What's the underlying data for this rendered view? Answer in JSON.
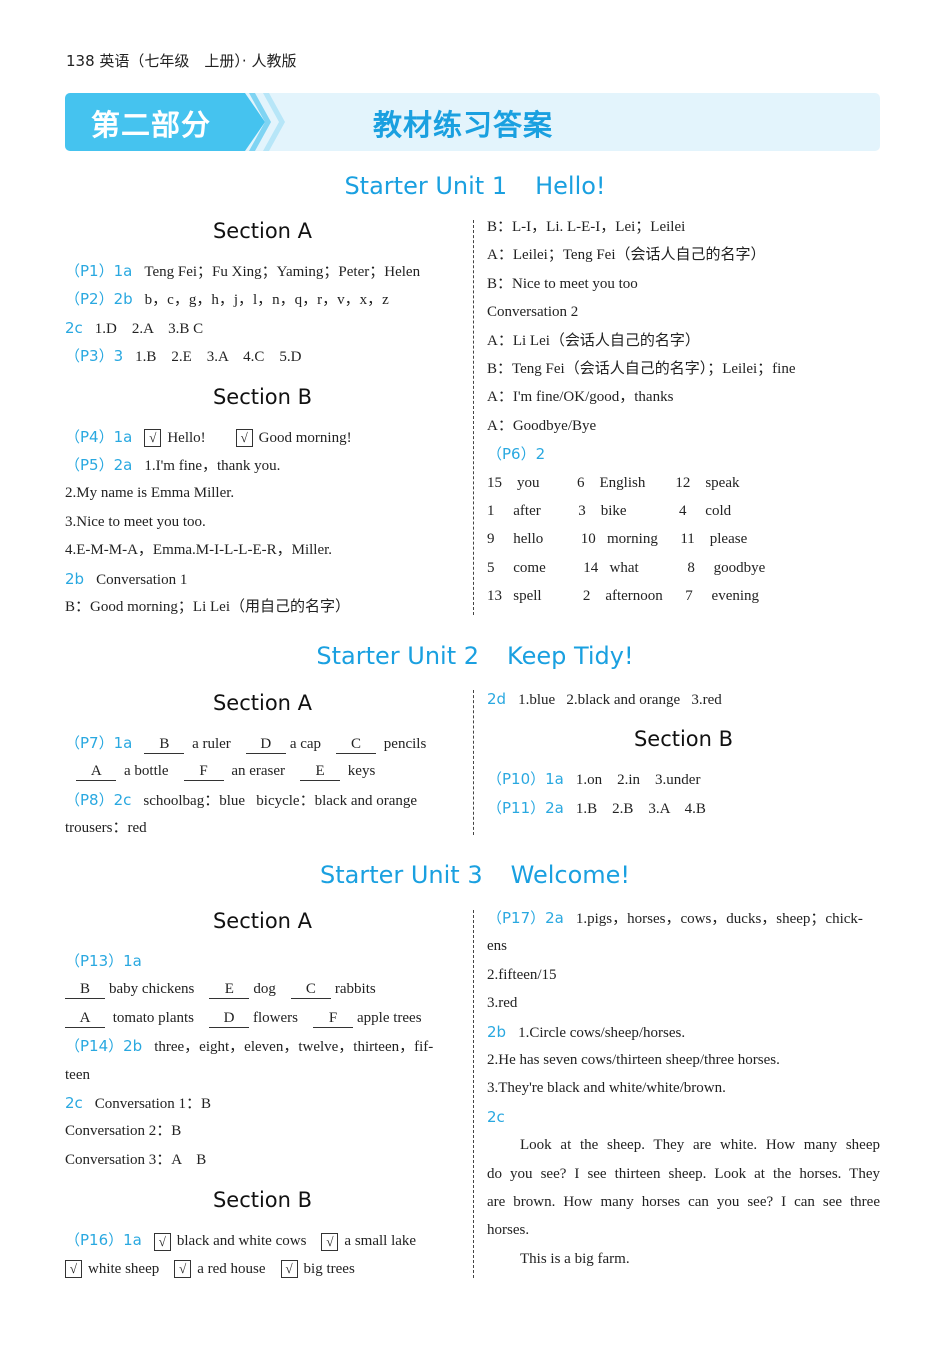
{
  "header": {
    "page_number": "138",
    "book": "英语（七年级　上册）· 人教版"
  },
  "banner": {
    "part": "第二部分",
    "title": "教材练习答案",
    "colors": {
      "tab": "#45c3ef",
      "bg": "#e3f4fc",
      "title": "#1aa0e0"
    }
  },
  "units": [
    {
      "number": "Starter Unit 1",
      "name": "Hello!",
      "left": [
        {
          "heading": "Section A"
        },
        {
          "label": "（P1）1a",
          "parts": [
            "Teng Fei；Fu Xing；Yaming；Peter；Helen"
          ]
        },
        {
          "label": "（P2）2b",
          "parts": [
            "b，c，g，h，j，l，n，q，r，v，x，z"
          ]
        },
        {
          "label": "  2c",
          "parts": [
            "1.D    2.A    3.B C"
          ]
        },
        {
          "label": "（P3）3",
          "parts": [
            "1.B    2.E    3.A    4.C    5.D"
          ]
        },
        {
          "heading": "Section B"
        },
        {
          "label": "（P4）1a",
          "parts": [
            {
              "check": "√"
            },
            "Hello!        ",
            {
              "check": "√"
            },
            "Good morning!"
          ]
        },
        {
          "label": "（P5）2a",
          "parts": [
            "1.I'm fine，thank you."
          ]
        },
        {
          "parts": [
            "2.My name is Emma Miller."
          ]
        },
        {
          "parts": [
            "3.Nice to meet you too."
          ]
        },
        {
          "parts": [
            "4.E-M-M-A，Emma.M-I-L-L-E-R，Miller."
          ]
        },
        {
          "label": "2b",
          "parts": [
            "Conversation 1"
          ]
        },
        {
          "parts": [
            "B：Good morning；Li Lei（用自己的名字）"
          ]
        }
      ],
      "right": [
        {
          "parts": [
            "B：L-I，Li. L-E-I，Lei；Leilei"
          ]
        },
        {
          "parts": [
            "A：Leilei；Teng Fei（会话人自己的名字）"
          ]
        },
        {
          "parts": [
            "B：Nice to meet you too"
          ]
        },
        {
          "parts": [
            "Conversation 2"
          ]
        },
        {
          "parts": [
            "A：Li Lei（会话人自己的名字）"
          ]
        },
        {
          "parts": [
            "B：Teng Fei（会话人自己的名字）；Leilei；fine"
          ]
        },
        {
          "parts": [
            "A：I'm fine/OK/good，thanks"
          ]
        },
        {
          "parts": [
            "A：Goodbye/Bye"
          ]
        },
        {
          "label": "（P6）2",
          "parts": []
        },
        {
          "parts": [
            "15    you          6    English        12    speak"
          ]
        },
        {
          "parts": [
            "1     after          3    bike              4     cold"
          ]
        },
        {
          "parts": [
            "9     hello          10   morning      11    please"
          ]
        },
        {
          "parts": [
            "5     come          14   what             8     goodbye"
          ]
        },
        {
          "parts": [
            "13   spell           2    afternoon      7     evening"
          ]
        }
      ]
    },
    {
      "number": "Starter Unit 2",
      "name": "Keep Tidy!",
      "left": [
        {
          "heading": "Section A"
        },
        {
          "label": "（P7）1a",
          "parts": [
            {
              "blank": "B"
            },
            " a ruler    ",
            {
              "blank": "D"
            },
            "a cap    ",
            {
              "blank": "C"
            },
            " pencils"
          ]
        },
        {
          "parts": [
            "   ",
            {
              "blank": "A"
            },
            " a bottle    ",
            {
              "blank": "F"
            },
            " an eraser    ",
            {
              "blank": "E"
            },
            " keys"
          ]
        },
        {
          "label": "（P8）2c",
          "parts": [
            "schoolbag：blue   bicycle：black and orange"
          ]
        },
        {
          "parts": [
            "trousers：red"
          ]
        }
      ],
      "right": [
        {
          "label": "2d",
          "parts": [
            "1.blue   2.black and orange   3.red"
          ]
        },
        {
          "heading": "Section B"
        },
        {
          "label": "（P10）1a",
          "parts": [
            "1.on    2.in    3.under"
          ]
        },
        {
          "label": "（P11）2a",
          "parts": [
            "1.B    2.B    3.A    4.B"
          ]
        }
      ]
    },
    {
      "number": "Starter Unit 3",
      "name": "Welcome!",
      "left": [
        {
          "heading": "Section A"
        },
        {
          "label": "（P13）1a",
          "parts": []
        },
        {
          "parts": [
            {
              "blank": "B"
            },
            "baby chickens    ",
            {
              "blank": "E"
            },
            "dog    ",
            {
              "blank": "C"
            },
            "rabbits"
          ]
        },
        {
          "parts": [
            {
              "blank": "A"
            },
            " tomato plants    ",
            {
              "blank": "D"
            },
            "flowers    ",
            {
              "blank": "F"
            },
            "apple trees"
          ]
        },
        {
          "label": "（P14）2b",
          "parts": [
            "three，eight，eleven，twelve，thirteen，fif-"
          ]
        },
        {
          "parts": [
            "teen"
          ]
        },
        {
          "label": "2c",
          "parts": [
            "Conversation 1：B"
          ]
        },
        {
          "parts": [
            "Conversation 2：B"
          ]
        },
        {
          "parts": [
            "Conversation 3：A    B"
          ]
        },
        {
          "heading": "Section B"
        },
        {
          "label": "（P16）1a",
          "parts": [
            {
              "check": "√"
            },
            "black and white cows    ",
            {
              "check": "√"
            },
            "a small lake"
          ]
        },
        {
          "parts": [
            {
              "check": "√"
            },
            "white sheep    ",
            {
              "check": "√"
            },
            "a red house    ",
            {
              "check": "√"
            },
            "big trees"
          ]
        }
      ],
      "right": [
        {
          "label": "（P17）2a",
          "parts": [
            "1.pigs，horses，cows，ducks，sheep；chick-"
          ]
        },
        {
          "parts": [
            "ens"
          ]
        },
        {
          "parts": [
            "2.fifteen/15"
          ]
        },
        {
          "parts": [
            "3.red"
          ]
        },
        {
          "label": "2b",
          "parts": [
            "1.Circle cows/sheep/horses."
          ]
        },
        {
          "parts": [
            "2.He has seven cows/thirteen sheep/three horses."
          ]
        },
        {
          "parts": [
            "3.They're black and white/white/brown."
          ]
        },
        {
          "label": "2c",
          "parts": []
        },
        {
          "style": "indent just",
          "parts": [
            "Look at the sheep. They are white. How many sheep"
          ]
        },
        {
          "style": "just",
          "parts": [
            "do you see? I see thirteen sheep. Look at the horses. They"
          ]
        },
        {
          "style": "just",
          "parts": [
            "are brown. How many horses can you see? I can see three"
          ]
        },
        {
          "parts": [
            "horses."
          ]
        },
        {
          "style": "indent",
          "parts": [
            "This is a big farm."
          ]
        }
      ]
    }
  ]
}
